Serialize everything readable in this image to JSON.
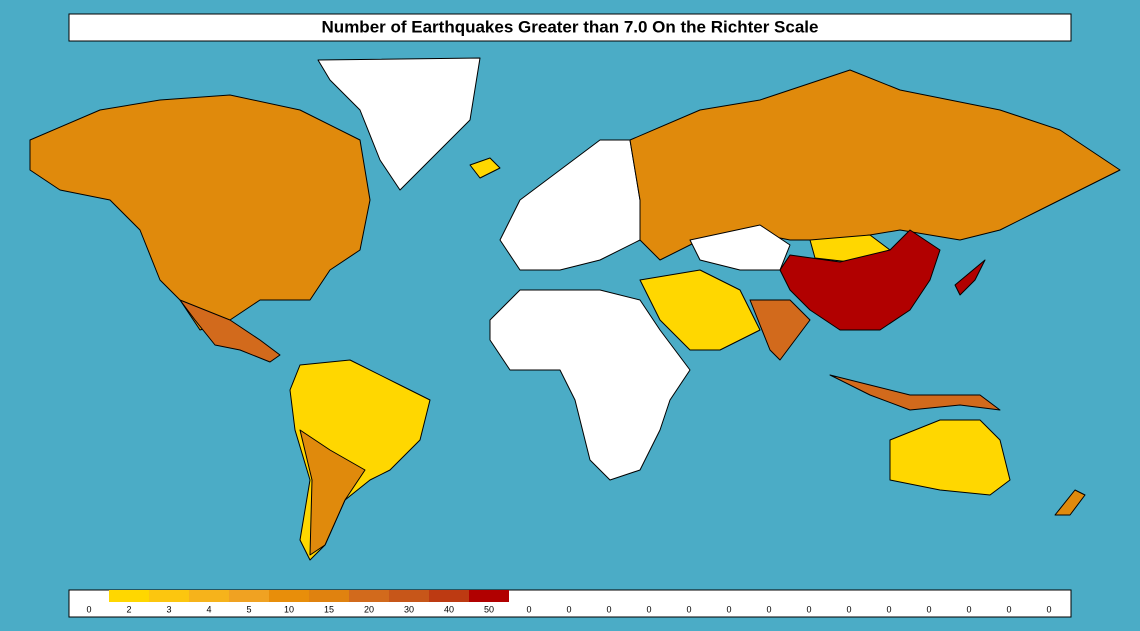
{
  "title": "Number of Earthquakes Greater than 7.0 On the Richter Scale",
  "legend": {
    "values": [
      0,
      2,
      3,
      4,
      5,
      10,
      15,
      20,
      30,
      40,
      50,
      0,
      0,
      0,
      0,
      0,
      0,
      0,
      0,
      0,
      0,
      0,
      0,
      0,
      0
    ],
    "colors": [
      "#ffffff",
      "#ffd700",
      "#fcc60f",
      "#f6b31b",
      "#f0a222",
      "#e88e0a",
      "#e0820f",
      "#d26a1c",
      "#c75619",
      "#bd3a12",
      "#b10000",
      "#ffffff",
      "#ffffff",
      "#ffffff",
      "#ffffff",
      "#ffffff",
      "#ffffff",
      "#ffffff",
      "#ffffff",
      "#ffffff",
      "#ffffff",
      "#ffffff",
      "#ffffff",
      "#ffffff",
      "#ffffff"
    ]
  }
}
